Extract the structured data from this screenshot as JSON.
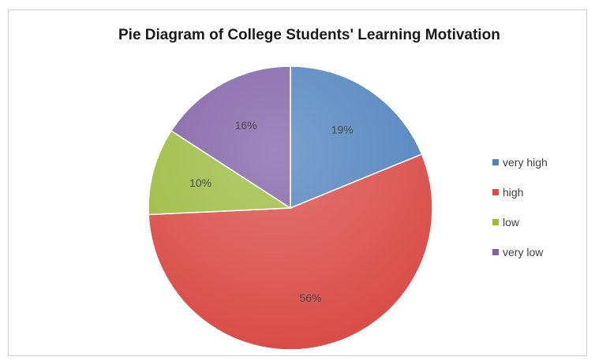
{
  "chart_data": {
    "type": "pie",
    "title": "Pie Diagram of College Students' Learning Motivation",
    "categories": [
      "very high",
      "high",
      "low",
      "very low"
    ],
    "values": [
      19,
      56,
      10,
      16
    ],
    "labels": [
      "19%",
      "56%",
      "10%",
      "16%"
    ],
    "colors": [
      "#4f81bd",
      "#d94a45",
      "#9bbb3f",
      "#7f5fa5"
    ],
    "legend_position": "right"
  }
}
